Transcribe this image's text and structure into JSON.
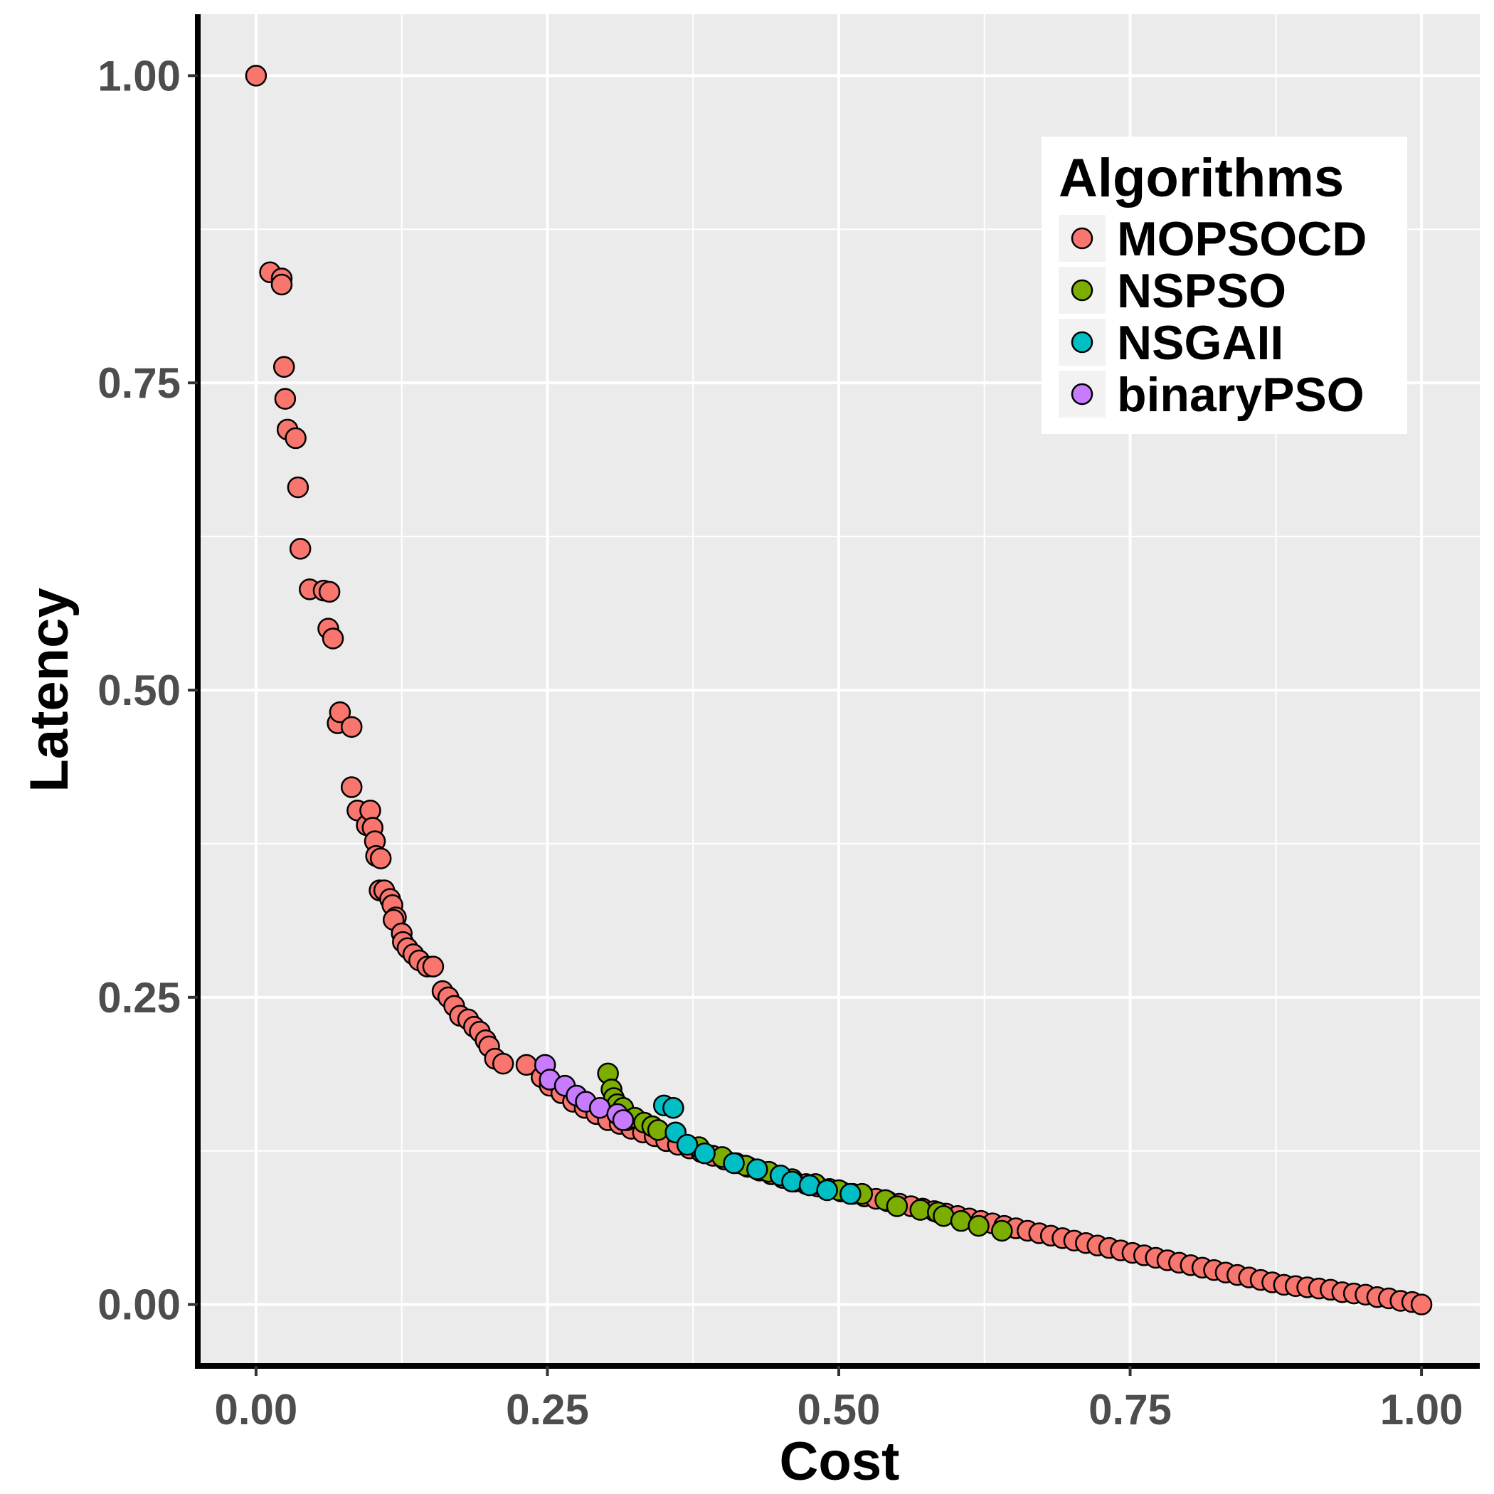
{
  "chart_data": {
    "type": "scatter",
    "xlabel": "Cost",
    "ylabel": "Latency",
    "xlim": [
      -0.05,
      1.05
    ],
    "ylim": [
      -0.05,
      1.05
    ],
    "x_ticks": [
      0.0,
      0.25,
      0.5,
      0.75,
      1.0
    ],
    "x_tick_labels": [
      "0.00",
      "0.25",
      "0.50",
      "0.75",
      "1.00"
    ],
    "y_ticks": [
      0.0,
      0.25,
      0.5,
      0.75,
      1.0
    ],
    "y_tick_labels": [
      "0.00",
      "0.25",
      "0.50",
      "0.75",
      "1.00"
    ],
    "grid": true,
    "legend": {
      "title": "Algorithms",
      "position": "top-right"
    },
    "series": [
      {
        "name": "MOPSOCD",
        "color": "#F8766D",
        "points": [
          [
            0.0,
            1.0
          ],
          [
            0.012,
            0.84
          ],
          [
            0.022,
            0.835
          ],
          [
            0.022,
            0.83
          ],
          [
            0.024,
            0.763
          ],
          [
            0.025,
            0.737
          ],
          [
            0.027,
            0.712
          ],
          [
            0.034,
            0.705
          ],
          [
            0.036,
            0.665
          ],
          [
            0.038,
            0.615
          ],
          [
            0.046,
            0.582
          ],
          [
            0.058,
            0.581
          ],
          [
            0.063,
            0.58
          ],
          [
            0.062,
            0.55
          ],
          [
            0.066,
            0.542
          ],
          [
            0.07,
            0.473
          ],
          [
            0.072,
            0.482
          ],
          [
            0.082,
            0.47
          ],
          [
            0.082,
            0.421
          ],
          [
            0.087,
            0.402
          ],
          [
            0.095,
            0.39
          ],
          [
            0.098,
            0.402
          ],
          [
            0.1,
            0.388
          ],
          [
            0.102,
            0.377
          ],
          [
            0.103,
            0.365
          ],
          [
            0.107,
            0.363
          ],
          [
            0.106,
            0.337
          ],
          [
            0.11,
            0.337
          ],
          [
            0.115,
            0.33
          ],
          [
            0.117,
            0.325
          ],
          [
            0.12,
            0.315
          ],
          [
            0.118,
            0.313
          ],
          [
            0.125,
            0.302
          ],
          [
            0.126,
            0.295
          ],
          [
            0.13,
            0.29
          ],
          [
            0.135,
            0.285
          ],
          [
            0.14,
            0.28
          ],
          [
            0.147,
            0.275
          ],
          [
            0.152,
            0.275
          ],
          [
            0.16,
            0.255
          ],
          [
            0.165,
            0.25
          ],
          [
            0.17,
            0.243
          ],
          [
            0.175,
            0.235
          ],
          [
            0.182,
            0.232
          ],
          [
            0.187,
            0.226
          ],
          [
            0.192,
            0.222
          ],
          [
            0.197,
            0.215
          ],
          [
            0.2,
            0.21
          ],
          [
            0.205,
            0.2
          ],
          [
            0.212,
            0.196
          ],
          [
            0.232,
            0.195
          ],
          [
            0.245,
            0.185
          ],
          [
            0.252,
            0.178
          ],
          [
            0.262,
            0.172
          ],
          [
            0.272,
            0.165
          ],
          [
            0.282,
            0.16
          ],
          [
            0.292,
            0.155
          ],
          [
            0.302,
            0.15
          ],
          [
            0.312,
            0.147
          ],
          [
            0.322,
            0.143
          ],
          [
            0.332,
            0.14
          ],
          [
            0.342,
            0.137
          ],
          [
            0.352,
            0.133
          ],
          [
            0.362,
            0.13
          ],
          [
            0.372,
            0.127
          ],
          [
            0.382,
            0.124
          ],
          [
            0.392,
            0.121
          ],
          [
            0.402,
            0.118
          ],
          [
            0.412,
            0.115
          ],
          [
            0.422,
            0.112
          ],
          [
            0.432,
            0.109
          ],
          [
            0.442,
            0.106
          ],
          [
            0.452,
            0.103
          ],
          [
            0.462,
            0.1
          ],
          [
            0.472,
            0.098
          ],
          [
            0.482,
            0.096
          ],
          [
            0.492,
            0.094
          ],
          [
            0.502,
            0.092
          ],
          [
            0.512,
            0.09
          ],
          [
            0.522,
            0.088
          ],
          [
            0.532,
            0.086
          ],
          [
            0.542,
            0.084
          ],
          [
            0.552,
            0.082
          ],
          [
            0.562,
            0.08
          ],
          [
            0.572,
            0.078
          ],
          [
            0.582,
            0.076
          ],
          [
            0.592,
            0.074
          ],
          [
            0.602,
            0.072
          ],
          [
            0.612,
            0.07
          ],
          [
            0.622,
            0.068
          ],
          [
            0.632,
            0.066
          ],
          [
            0.642,
            0.064
          ],
          [
            0.652,
            0.062
          ],
          [
            0.662,
            0.06
          ],
          [
            0.672,
            0.058
          ],
          [
            0.682,
            0.056
          ],
          [
            0.692,
            0.054
          ],
          [
            0.702,
            0.052
          ],
          [
            0.712,
            0.05
          ],
          [
            0.722,
            0.048
          ],
          [
            0.732,
            0.046
          ],
          [
            0.742,
            0.044
          ],
          [
            0.752,
            0.042
          ],
          [
            0.762,
            0.04
          ],
          [
            0.772,
            0.038
          ],
          [
            0.782,
            0.036
          ],
          [
            0.792,
            0.034
          ],
          [
            0.802,
            0.032
          ],
          [
            0.812,
            0.03
          ],
          [
            0.822,
            0.028
          ],
          [
            0.832,
            0.026
          ],
          [
            0.842,
            0.024
          ],
          [
            0.852,
            0.022
          ],
          [
            0.862,
            0.02
          ],
          [
            0.872,
            0.018
          ],
          [
            0.882,
            0.016
          ],
          [
            0.892,
            0.015
          ],
          [
            0.902,
            0.014
          ],
          [
            0.912,
            0.013
          ],
          [
            0.922,
            0.012
          ],
          [
            0.932,
            0.01
          ],
          [
            0.942,
            0.009
          ],
          [
            0.952,
            0.008
          ],
          [
            0.962,
            0.006
          ],
          [
            0.972,
            0.005
          ],
          [
            0.982,
            0.003
          ],
          [
            0.992,
            0.002
          ],
          [
            1.0,
            0.0
          ]
        ]
      },
      {
        "name": "NSPSO",
        "color": "#7CAE00",
        "points": [
          [
            0.302,
            0.188
          ],
          [
            0.305,
            0.175
          ],
          [
            0.307,
            0.168
          ],
          [
            0.31,
            0.163
          ],
          [
            0.315,
            0.16
          ],
          [
            0.318,
            0.15
          ],
          [
            0.325,
            0.152
          ],
          [
            0.333,
            0.148
          ],
          [
            0.34,
            0.145
          ],
          [
            0.345,
            0.142
          ],
          [
            0.36,
            0.14
          ],
          [
            0.38,
            0.128
          ],
          [
            0.4,
            0.12
          ],
          [
            0.42,
            0.113
          ],
          [
            0.44,
            0.108
          ],
          [
            0.46,
            0.102
          ],
          [
            0.48,
            0.098
          ],
          [
            0.5,
            0.093
          ],
          [
            0.52,
            0.09
          ],
          [
            0.54,
            0.085
          ],
          [
            0.55,
            0.08
          ],
          [
            0.57,
            0.077
          ],
          [
            0.585,
            0.075
          ],
          [
            0.59,
            0.072
          ],
          [
            0.605,
            0.068
          ],
          [
            0.62,
            0.064
          ],
          [
            0.64,
            0.06
          ]
        ]
      },
      {
        "name": "NSGAII",
        "color": "#00BFC4",
        "points": [
          [
            0.35,
            0.162
          ],
          [
            0.358,
            0.16
          ],
          [
            0.36,
            0.14
          ],
          [
            0.37,
            0.13
          ],
          [
            0.385,
            0.123
          ],
          [
            0.41,
            0.115
          ],
          [
            0.43,
            0.11
          ],
          [
            0.45,
            0.105
          ],
          [
            0.46,
            0.1
          ],
          [
            0.475,
            0.097
          ],
          [
            0.49,
            0.093
          ],
          [
            0.51,
            0.09
          ]
        ]
      },
      {
        "name": "binaryPSO",
        "color": "#C77CFF",
        "points": [
          [
            0.248,
            0.195
          ],
          [
            0.252,
            0.183
          ],
          [
            0.265,
            0.178
          ],
          [
            0.275,
            0.17
          ],
          [
            0.283,
            0.165
          ],
          [
            0.295,
            0.16
          ],
          [
            0.31,
            0.155
          ],
          [
            0.315,
            0.15
          ]
        ]
      }
    ]
  }
}
